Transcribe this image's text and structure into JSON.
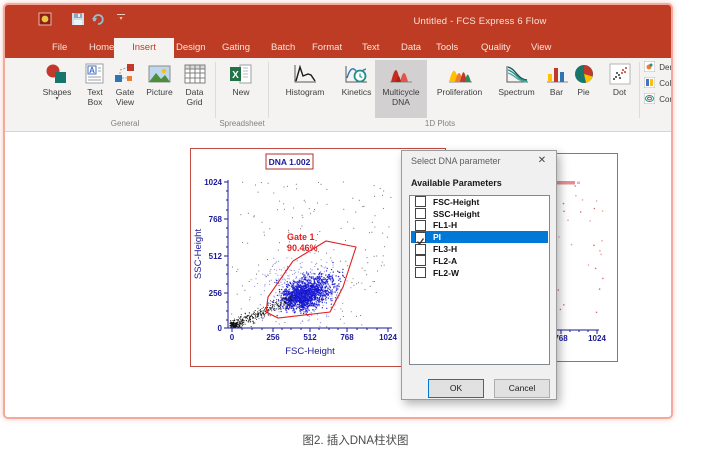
{
  "titlebar": {
    "title": "Untitled - FCS Express 6 Flow",
    "qat_icons": [
      "app-icon",
      "save-icon",
      "undo-icon",
      "qat-dropdown-icon"
    ]
  },
  "tabs": [
    "File",
    "Home",
    "Insert",
    "Design",
    "Gating",
    "Batch",
    "Format",
    "Text",
    "Data",
    "Tools",
    "Quality",
    "View"
  ],
  "active_tab": "Insert",
  "ribbon": {
    "groups": [
      "General",
      "Spreadsheet",
      "1D Plots"
    ],
    "buttons": [
      {
        "label": "Shapes",
        "icon": "shapes-icon",
        "has_dropdown": true
      },
      {
        "label": "Text Box",
        "icon": "text-box-icon"
      },
      {
        "label": "Gate View",
        "icon": "gate-view-icon"
      },
      {
        "label": "Picture",
        "icon": "picture-icon"
      },
      {
        "label": "Data Grid",
        "icon": "data-grid-icon"
      },
      {
        "label": "New",
        "icon": "new-spreadsheet-icon"
      },
      {
        "label": "Histogram",
        "icon": "histogram-icon"
      },
      {
        "label": "Kinetics",
        "icon": "kinetics-icon"
      },
      {
        "label": "Multicycle DNA",
        "icon": "multicycle-dna-icon",
        "selected": true
      },
      {
        "label": "Proliferation",
        "icon": "proliferation-icon"
      },
      {
        "label": "Spectrum",
        "icon": "spectrum-icon"
      },
      {
        "label": "Bar",
        "icon": "bar-icon"
      },
      {
        "label": "Pie",
        "icon": "pie-icon"
      },
      {
        "label": "Dot",
        "icon": "dot-icon"
      },
      {
        "label": "Dens",
        "icon": "density-icon"
      },
      {
        "label": "Colo",
        "icon": "color-icon"
      },
      {
        "label": "Cont",
        "icon": "contour-icon"
      }
    ]
  },
  "plot1": {
    "title": "DNA 1.002",
    "xlabel": "FSC-Height",
    "ylabel": "SSC-Height",
    "xticks": [
      "0",
      "256",
      "512",
      "768",
      "1024"
    ],
    "yticks": [
      "1024",
      "768",
      "512",
      "256",
      "0"
    ],
    "gate": {
      "name": "Gate 1",
      "percent": "90.46%"
    }
  },
  "plot2": {
    "xticks": [
      "768",
      "1024"
    ]
  },
  "dialog": {
    "title": "Select DNA parameter",
    "header": "Available Parameters",
    "params": [
      {
        "label": "FSC-Height",
        "checked": false,
        "selected": false
      },
      {
        "label": "SSC-Height",
        "checked": false,
        "selected": false
      },
      {
        "label": "FL1-H",
        "checked": false,
        "selected": false
      },
      {
        "label": "PI",
        "checked": true,
        "selected": true
      },
      {
        "label": "FL3-H",
        "checked": false,
        "selected": false
      },
      {
        "label": "FL2-A",
        "checked": false,
        "selected": false
      },
      {
        "label": "FL2-W",
        "checked": false,
        "selected": false
      }
    ],
    "ok_label": "OK",
    "cancel_label": "Cancel"
  },
  "caption": "图2. 插入DNA柱状图",
  "icons": {
    "close": "✕",
    "dropdown_caret": "▾"
  },
  "colors": {
    "titlebar_orange": "#BD3C23",
    "selection_blue": "#0078D7",
    "gate_red": "#E02020",
    "axis_navy": "#1A1A99",
    "plot_border_red": "#C34A43"
  }
}
